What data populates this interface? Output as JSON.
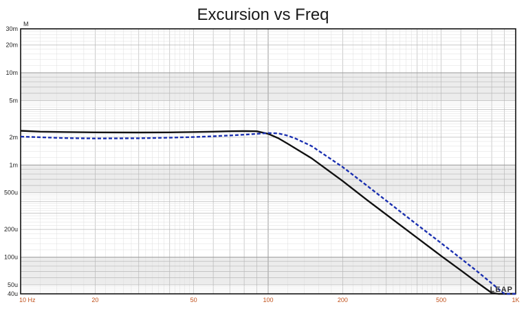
{
  "chart_data": {
    "type": "line",
    "title": "Excursion vs Freq",
    "y_unit_label": "M",
    "x_scale": "log",
    "y_scale": "log",
    "xlim": [
      10,
      1000
    ],
    "ylim": [
      4e-05,
      0.03
    ],
    "grid": true,
    "x_ticks": [
      {
        "value": 10,
        "label": "10 Hz"
      },
      {
        "value": 20,
        "label": "20"
      },
      {
        "value": 50,
        "label": "50"
      },
      {
        "value": 100,
        "label": "100"
      },
      {
        "value": 200,
        "label": "200"
      },
      {
        "value": 500,
        "label": "500"
      },
      {
        "value": 1000,
        "label": "1K"
      }
    ],
    "y_ticks": [
      {
        "value": 0.03,
        "label": "30m"
      },
      {
        "value": 0.02,
        "label": "20m"
      },
      {
        "value": 0.01,
        "label": "10m"
      },
      {
        "value": 0.005,
        "label": "5m"
      },
      {
        "value": 0.002,
        "label": "2m"
      },
      {
        "value": 0.001,
        "label": "1m"
      },
      {
        "value": 0.0005,
        "label": "500u"
      },
      {
        "value": 0.0002,
        "label": "200u"
      },
      {
        "value": 0.0001,
        "label": "100u"
      },
      {
        "value": 5e-05,
        "label": "50u"
      },
      {
        "value": 4e-05,
        "label": "40u"
      }
    ],
    "series": [
      {
        "style": "solid",
        "color": "#111111",
        "x": [
          10,
          12,
          15,
          20,
          30,
          40,
          50,
          60,
          70,
          80,
          90,
          100,
          110,
          120,
          150,
          200,
          250,
          300,
          400,
          500,
          600,
          700,
          800,
          850,
          900,
          1000
        ],
        "y": [
          0.00235,
          0.0023,
          0.00228,
          0.00226,
          0.00225,
          0.00226,
          0.00228,
          0.0023,
          0.00232,
          0.00233,
          0.00232,
          0.00218,
          0.00195,
          0.0017,
          0.00118,
          0.00067,
          0.00042,
          0.00029,
          0.000162,
          0.000103,
          7.2e-05,
          5.3e-05,
          4.1e-05,
          4e-05,
          4e-05,
          4e-05
        ]
      },
      {
        "style": "dashed",
        "color": "#1a2fb0",
        "x": [
          10,
          12,
          15,
          20,
          30,
          40,
          50,
          60,
          70,
          80,
          90,
          100,
          110,
          120,
          130,
          150,
          200,
          250,
          300,
          400,
          500,
          600,
          700,
          800,
          900,
          1000
        ],
        "y": [
          0.00203,
          0.002,
          0.00196,
          0.00194,
          0.00195,
          0.00198,
          0.00201,
          0.00205,
          0.00209,
          0.00213,
          0.00218,
          0.00222,
          0.0022,
          0.00208,
          0.00192,
          0.0016,
          0.00095,
          0.0006,
          0.00041,
          0.000225,
          0.000142,
          9.7e-05,
          7e-05,
          5.2e-05,
          4e-05,
          4e-05
        ]
      }
    ]
  },
  "watermark": "LEAP"
}
